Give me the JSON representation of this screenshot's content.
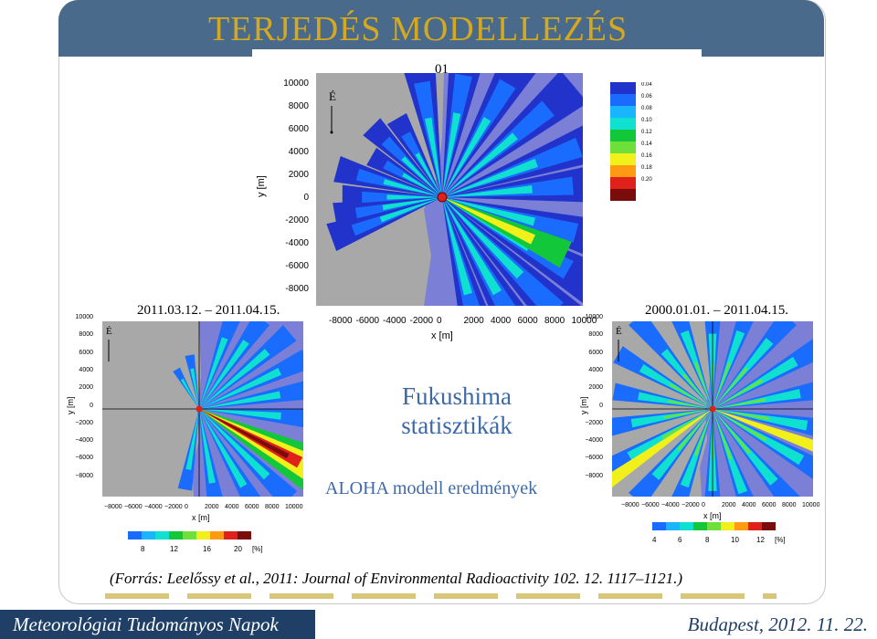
{
  "slide": {
    "title": "TERJEDÉS MODELLEZÉS",
    "center_title": "Fukushima\nstatisztikák",
    "center_title_line1": "Fukushima",
    "center_title_line2": "statisztikák",
    "subtitle": "ALOHA modell eredmények",
    "source": "(Forrás: Leelőssy et al., 2011: Journal of  Environmental Radioactivity 102. 12. 1117–1121.)"
  },
  "footer": {
    "left": "Meteorológiai Tudományos Napok",
    "right": "Budapest, 2012. 11. 22."
  },
  "plots": {
    "top": {
      "label": "01",
      "north_label": "É",
      "xlabel": "x [m]",
      "ylabel": "y [m]",
      "yticks": [
        "10000",
        "8000",
        "6000",
        "4000",
        "2000",
        "0",
        "-2000",
        "-4000",
        "-6000",
        "-8000"
      ],
      "xticks": [
        "-8000",
        "-6000",
        "-4000",
        "-2000",
        "0",
        "2000",
        "4000",
        "6000",
        "8000",
        "10000"
      ],
      "legend": [
        "0.04",
        "0.06",
        "0.08",
        "0.10",
        "0.12",
        "0.14",
        "0.16",
        "0.18",
        "0.20"
      ]
    },
    "left": {
      "label": "2011.03.12. – 2011.04.15.",
      "north_label": "É",
      "xlabel": "x [m]",
      "ylabel": "y [m]",
      "yticks": [
        "10000",
        "8000",
        "6000",
        "4000",
        "2000",
        "0",
        "−2000",
        "−4000",
        "−6000",
        "−8000"
      ],
      "xticks": [
        "−8000",
        "−6000",
        "−4000",
        "−2000",
        "0",
        "2000",
        "4000",
        "6000",
        "8000",
        "10000"
      ],
      "legend": [
        "8",
        "12",
        "16",
        "20",
        "[%]"
      ]
    },
    "right": {
      "label": "2000.01.01. – 2011.04.15.",
      "north_label": "É",
      "xlabel": "x [m]",
      "ylabel": "y [m]",
      "yticks": [
        "10000",
        "8000",
        "6000",
        "4000",
        "2000",
        "0",
        "−2000",
        "−4000",
        "−6000",
        "−8000"
      ],
      "xticks": [
        "−8000",
        "−6000",
        "−4000",
        "−2000",
        "0",
        "2000",
        "4000",
        "6000",
        "8000",
        "10000"
      ],
      "legend": [
        "4",
        "6",
        "8",
        "10",
        "12",
        "[%]"
      ]
    }
  },
  "colors": {
    "title_gold": "#d4a91f",
    "accent_blue": "#3d6aa6",
    "footer_navy": "#1f3f67",
    "land_gray": "#a8a8a8",
    "sea_purple": "#7b7fd6",
    "plume_colors": [
      "#2233cc",
      "#1a6cff",
      "#19b6ff",
      "#10e0d0",
      "#12c83a",
      "#6fe03a",
      "#f2f01a",
      "#ff9a12",
      "#e0201a",
      "#7a0c0c"
    ]
  }
}
